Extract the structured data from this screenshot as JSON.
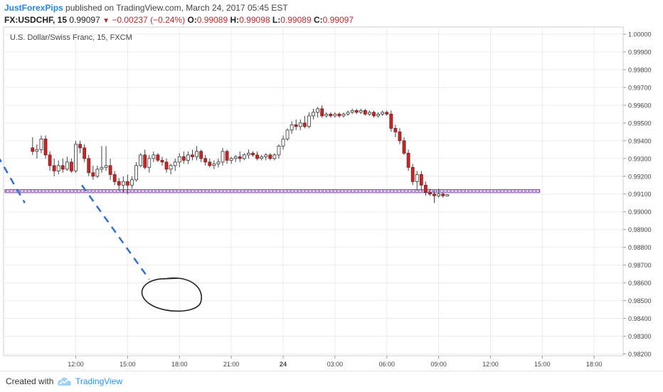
{
  "header": {
    "author": "JustForexPips",
    "published_text": "published on TradingView.com, March 24, 2017 05:45 EST",
    "symbol": "FX:USDCHF, 15",
    "last_price": "0.99097",
    "change": "−0.00237 (−0.24%)",
    "open_label": "O:",
    "open": "0.99089",
    "high_label": "H:",
    "high": "0.99098",
    "low_label": "L:",
    "low": "0.99089",
    "close_label": "C:",
    "close": "0.99097"
  },
  "chart_title": "U.S. Dollar/Swiss Franc, 15, FXCM",
  "footer": {
    "created_with": "Created with",
    "brand": "TradingView"
  },
  "colors": {
    "up_candle": "#ffffff",
    "down_candle": "#c62828",
    "wick": "#444444",
    "support_band": "#7b3fa0",
    "projection": "#2f6fd6",
    "grid": "#ececec"
  },
  "chart_data": {
    "type": "candlestick",
    "title": "U.S. Dollar/Swiss Franc, 15, FXCM",
    "x_ticks": [
      "12:00",
      "15:00",
      "18:00",
      "21:00",
      "24",
      "03:00",
      "06:00",
      "09:00",
      "12:00",
      "15:00",
      "18:00"
    ],
    "y_ticks": [
      "1.00000",
      "0.99900",
      "0.99800",
      "0.99700",
      "0.99600",
      "0.99500",
      "0.99400",
      "0.99300",
      "0.99200",
      "0.99100",
      "0.99000",
      "0.98900",
      "0.98800",
      "0.98700",
      "0.98600",
      "0.98500",
      "0.98400",
      "0.98300",
      "0.98200"
    ],
    "ylim": [
      0.9819,
      1.0004
    ],
    "support_level": 0.99117,
    "support_band": [
      0.99108,
      0.99125
    ],
    "projection_lines": [
      {
        "from": [
          6.0,
          0.99565
        ],
        "to": [
          9.05,
          0.9905
        ]
      },
      {
        "from": [
          12.35,
          0.9915
        ],
        "to": [
          16.25,
          0.9862
        ]
      }
    ],
    "target_circle": {
      "x": 17.5,
      "y": 0.9853
    },
    "candles": [
      {
        "t": 9.5,
        "o": 0.9936,
        "h": 0.9942,
        "l": 0.9932,
        "c": 0.9934
      },
      {
        "t": 9.75,
        "o": 0.9934,
        "h": 0.9938,
        "l": 0.993,
        "c": 0.9935
      },
      {
        "t": 10.0,
        "o": 0.9935,
        "h": 0.9943,
        "l": 0.9933,
        "c": 0.9941
      },
      {
        "t": 10.25,
        "o": 0.9941,
        "h": 0.9943,
        "l": 0.993,
        "c": 0.9932
      },
      {
        "t": 10.5,
        "o": 0.9932,
        "h": 0.9934,
        "l": 0.9923,
        "c": 0.9926
      },
      {
        "t": 10.75,
        "o": 0.9926,
        "h": 0.993,
        "l": 0.992,
        "c": 0.9923
      },
      {
        "t": 11.0,
        "o": 0.9923,
        "h": 0.9929,
        "l": 0.9921,
        "c": 0.9926
      },
      {
        "t": 11.25,
        "o": 0.9926,
        "h": 0.993,
        "l": 0.9922,
        "c": 0.9924
      },
      {
        "t": 11.5,
        "o": 0.9924,
        "h": 0.9931,
        "l": 0.9923,
        "c": 0.9928
      },
      {
        "t": 11.75,
        "o": 0.9928,
        "h": 0.993,
        "l": 0.9922,
        "c": 0.9923
      },
      {
        "t": 12.0,
        "o": 0.9923,
        "h": 0.994,
        "l": 0.9922,
        "c": 0.9938
      },
      {
        "t": 12.25,
        "o": 0.9938,
        "h": 0.994,
        "l": 0.9933,
        "c": 0.9936
      },
      {
        "t": 12.5,
        "o": 0.9936,
        "h": 0.9938,
        "l": 0.9928,
        "c": 0.993
      },
      {
        "t": 12.75,
        "o": 0.993,
        "h": 0.9932,
        "l": 0.992,
        "c": 0.9922
      },
      {
        "t": 13.0,
        "o": 0.9922,
        "h": 0.9926,
        "l": 0.9918,
        "c": 0.992
      },
      {
        "t": 13.25,
        "o": 0.992,
        "h": 0.9926,
        "l": 0.9919,
        "c": 0.9924
      },
      {
        "t": 13.5,
        "o": 0.9924,
        "h": 0.9937,
        "l": 0.9922,
        "c": 0.9925
      },
      {
        "t": 13.75,
        "o": 0.9925,
        "h": 0.9937,
        "l": 0.9923,
        "c": 0.9926
      },
      {
        "t": 14.0,
        "o": 0.9926,
        "h": 0.993,
        "l": 0.9918,
        "c": 0.9921
      },
      {
        "t": 14.25,
        "o": 0.9921,
        "h": 0.9923,
        "l": 0.9915,
        "c": 0.9917
      },
      {
        "t": 14.5,
        "o": 0.9917,
        "h": 0.9919,
        "l": 0.9912,
        "c": 0.9915
      },
      {
        "t": 14.75,
        "o": 0.9915,
        "h": 0.992,
        "l": 0.9911,
        "c": 0.9917
      },
      {
        "t": 15.0,
        "o": 0.9917,
        "h": 0.9921,
        "l": 0.991,
        "c": 0.9915
      },
      {
        "t": 15.25,
        "o": 0.9915,
        "h": 0.992,
        "l": 0.9913,
        "c": 0.9918
      },
      {
        "t": 15.5,
        "o": 0.9918,
        "h": 0.9928,
        "l": 0.9917,
        "c": 0.9926
      },
      {
        "t": 15.75,
        "o": 0.9926,
        "h": 0.9933,
        "l": 0.9925,
        "c": 0.9932
      },
      {
        "t": 16.0,
        "o": 0.9932,
        "h": 0.9935,
        "l": 0.9924,
        "c": 0.9925
      },
      {
        "t": 16.25,
        "o": 0.9925,
        "h": 0.9932,
        "l": 0.9922,
        "c": 0.993
      },
      {
        "t": 16.5,
        "o": 0.993,
        "h": 0.9934,
        "l": 0.9928,
        "c": 0.9932
      },
      {
        "t": 16.75,
        "o": 0.9932,
        "h": 0.9933,
        "l": 0.9928,
        "c": 0.9929
      },
      {
        "t": 17.0,
        "o": 0.9929,
        "h": 0.9931,
        "l": 0.9926,
        "c": 0.9928
      },
      {
        "t": 17.25,
        "o": 0.9928,
        "h": 0.993,
        "l": 0.9922,
        "c": 0.9924
      },
      {
        "t": 17.5,
        "o": 0.9924,
        "h": 0.9927,
        "l": 0.9921,
        "c": 0.9926
      },
      {
        "t": 17.75,
        "o": 0.9926,
        "h": 0.993,
        "l": 0.9923,
        "c": 0.9928
      },
      {
        "t": 18.0,
        "o": 0.9928,
        "h": 0.9933,
        "l": 0.9925,
        "c": 0.9931
      },
      {
        "t": 18.25,
        "o": 0.9931,
        "h": 0.9934,
        "l": 0.9927,
        "c": 0.9929
      },
      {
        "t": 18.5,
        "o": 0.9929,
        "h": 0.9934,
        "l": 0.9927,
        "c": 0.9932
      },
      {
        "t": 18.75,
        "o": 0.9932,
        "h": 0.9935,
        "l": 0.9929,
        "c": 0.9931
      },
      {
        "t": 19.0,
        "o": 0.9931,
        "h": 0.9937,
        "l": 0.9929,
        "c": 0.9934
      },
      {
        "t": 19.25,
        "o": 0.9934,
        "h": 0.9935,
        "l": 0.9928,
        "c": 0.993
      },
      {
        "t": 19.5,
        "o": 0.993,
        "h": 0.9932,
        "l": 0.9926,
        "c": 0.9928
      },
      {
        "t": 19.75,
        "o": 0.9928,
        "h": 0.993,
        "l": 0.9925,
        "c": 0.9926
      },
      {
        "t": 20.0,
        "o": 0.9926,
        "h": 0.9929,
        "l": 0.9924,
        "c": 0.9927
      },
      {
        "t": 20.25,
        "o": 0.9927,
        "h": 0.993,
        "l": 0.9925,
        "c": 0.9928
      },
      {
        "t": 20.5,
        "o": 0.9928,
        "h": 0.9936,
        "l": 0.9926,
        "c": 0.9934
      },
      {
        "t": 20.75,
        "o": 0.9934,
        "h": 0.9935,
        "l": 0.9927,
        "c": 0.9929
      },
      {
        "t": 21.0,
        "o": 0.9929,
        "h": 0.9931,
        "l": 0.9927,
        "c": 0.993
      },
      {
        "t": 21.25,
        "o": 0.993,
        "h": 0.9932,
        "l": 0.9928,
        "c": 0.9931
      },
      {
        "t": 21.5,
        "o": 0.9931,
        "h": 0.9934,
        "l": 0.9928,
        "c": 0.993
      },
      {
        "t": 21.75,
        "o": 0.993,
        "h": 0.9933,
        "l": 0.9929,
        "c": 0.9932
      },
      {
        "t": 22.0,
        "o": 0.9932,
        "h": 0.9935,
        "l": 0.993,
        "c": 0.9933
      },
      {
        "t": 22.25,
        "o": 0.9933,
        "h": 0.9934,
        "l": 0.9931,
        "c": 0.9932
      },
      {
        "t": 22.5,
        "o": 0.9932,
        "h": 0.9934,
        "l": 0.9929,
        "c": 0.993
      },
      {
        "t": 22.75,
        "o": 0.993,
        "h": 0.9932,
        "l": 0.9929,
        "c": 0.9931
      },
      {
        "t": 23.0,
        "o": 0.9931,
        "h": 0.9933,
        "l": 0.9929,
        "c": 0.9932
      },
      {
        "t": 23.25,
        "o": 0.9932,
        "h": 0.9933,
        "l": 0.9929,
        "c": 0.993
      },
      {
        "t": 23.5,
        "o": 0.993,
        "h": 0.9933,
        "l": 0.9929,
        "c": 0.9932
      },
      {
        "t": 23.75,
        "o": 0.9932,
        "h": 0.9938,
        "l": 0.993,
        "c": 0.9937
      },
      {
        "t": 24.0,
        "o": 0.9937,
        "h": 0.9943,
        "l": 0.9935,
        "c": 0.9941
      },
      {
        "t": 24.25,
        "o": 0.9941,
        "h": 0.9947,
        "l": 0.994,
        "c": 0.9946
      },
      {
        "t": 24.5,
        "o": 0.9946,
        "h": 0.9951,
        "l": 0.9944,
        "c": 0.9949
      },
      {
        "t": 24.75,
        "o": 0.9949,
        "h": 0.9952,
        "l": 0.9946,
        "c": 0.9948
      },
      {
        "t": 25.0,
        "o": 0.9948,
        "h": 0.9952,
        "l": 0.9946,
        "c": 0.995
      },
      {
        "t": 25.25,
        "o": 0.995,
        "h": 0.9954,
        "l": 0.9947,
        "c": 0.9948
      },
      {
        "t": 25.5,
        "o": 0.9948,
        "h": 0.9956,
        "l": 0.9947,
        "c": 0.9954
      },
      {
        "t": 25.75,
        "o": 0.9954,
        "h": 0.9958,
        "l": 0.9952,
        "c": 0.9956
      },
      {
        "t": 26.0,
        "o": 0.9956,
        "h": 0.9959,
        "l": 0.9953,
        "c": 0.9958
      },
      {
        "t": 26.25,
        "o": 0.9958,
        "h": 0.996,
        "l": 0.9953,
        "c": 0.9954
      },
      {
        "t": 26.5,
        "o": 0.9954,
        "h": 0.9956,
        "l": 0.9953,
        "c": 0.9955
      },
      {
        "t": 26.75,
        "o": 0.9955,
        "h": 0.9956,
        "l": 0.9953,
        "c": 0.9954
      },
      {
        "t": 27.0,
        "o": 0.9954,
        "h": 0.9956,
        "l": 0.9953,
        "c": 0.9955
      },
      {
        "t": 27.25,
        "o": 0.9955,
        "h": 0.9956,
        "l": 0.9953,
        "c": 0.9954
      },
      {
        "t": 27.5,
        "o": 0.9954,
        "h": 0.9956,
        "l": 0.9953,
        "c": 0.9955
      },
      {
        "t": 27.75,
        "o": 0.9955,
        "h": 0.9957,
        "l": 0.9954,
        "c": 0.9956
      },
      {
        "t": 28.0,
        "o": 0.9956,
        "h": 0.9958,
        "l": 0.9955,
        "c": 0.9957
      },
      {
        "t": 28.25,
        "o": 0.9957,
        "h": 0.9958,
        "l": 0.9955,
        "c": 0.9956
      },
      {
        "t": 28.5,
        "o": 0.9956,
        "h": 0.9958,
        "l": 0.9955,
        "c": 0.9957
      },
      {
        "t": 28.75,
        "o": 0.9957,
        "h": 0.9958,
        "l": 0.9954,
        "c": 0.9955
      },
      {
        "t": 29.0,
        "o": 0.9955,
        "h": 0.9957,
        "l": 0.9954,
        "c": 0.9956
      },
      {
        "t": 29.25,
        "o": 0.9956,
        "h": 0.9957,
        "l": 0.9953,
        "c": 0.9954
      },
      {
        "t": 29.5,
        "o": 0.9954,
        "h": 0.9956,
        "l": 0.9953,
        "c": 0.9955
      },
      {
        "t": 29.75,
        "o": 0.9955,
        "h": 0.9957,
        "l": 0.9954,
        "c": 0.9956
      },
      {
        "t": 30.0,
        "o": 0.9956,
        "h": 0.9957,
        "l": 0.9954,
        "c": 0.9955
      },
      {
        "t": 30.25,
        "o": 0.9955,
        "h": 0.9957,
        "l": 0.9945,
        "c": 0.9947
      },
      {
        "t": 30.5,
        "o": 0.9947,
        "h": 0.9949,
        "l": 0.9942,
        "c": 0.9945
      },
      {
        "t": 30.75,
        "o": 0.9945,
        "h": 0.9947,
        "l": 0.9938,
        "c": 0.994
      },
      {
        "t": 31.0,
        "o": 0.994,
        "h": 0.9942,
        "l": 0.9932,
        "c": 0.9933
      },
      {
        "t": 31.25,
        "o": 0.9933,
        "h": 0.9935,
        "l": 0.9923,
        "c": 0.9925
      },
      {
        "t": 31.5,
        "o": 0.9925,
        "h": 0.9927,
        "l": 0.9915,
        "c": 0.9917
      },
      {
        "t": 31.75,
        "o": 0.9917,
        "h": 0.9923,
        "l": 0.9912,
        "c": 0.9921
      },
      {
        "t": 32.0,
        "o": 0.9921,
        "h": 0.9923,
        "l": 0.9912,
        "c": 0.9915
      },
      {
        "t": 32.25,
        "o": 0.9915,
        "h": 0.9917,
        "l": 0.9909,
        "c": 0.9911
      },
      {
        "t": 32.5,
        "o": 0.9911,
        "h": 0.9913,
        "l": 0.9909,
        "c": 0.991
      },
      {
        "t": 32.75,
        "o": 0.991,
        "h": 0.9912,
        "l": 0.9905,
        "c": 0.9909
      },
      {
        "t": 33.0,
        "o": 0.9909,
        "h": 0.9913,
        "l": 0.9908,
        "c": 0.991
      },
      {
        "t": 33.25,
        "o": 0.991,
        "h": 0.9911,
        "l": 0.9908,
        "c": 0.9909
      },
      {
        "t": 33.5,
        "o": 0.99089,
        "h": 0.99098,
        "l": 0.99089,
        "c": 0.99097
      }
    ]
  }
}
